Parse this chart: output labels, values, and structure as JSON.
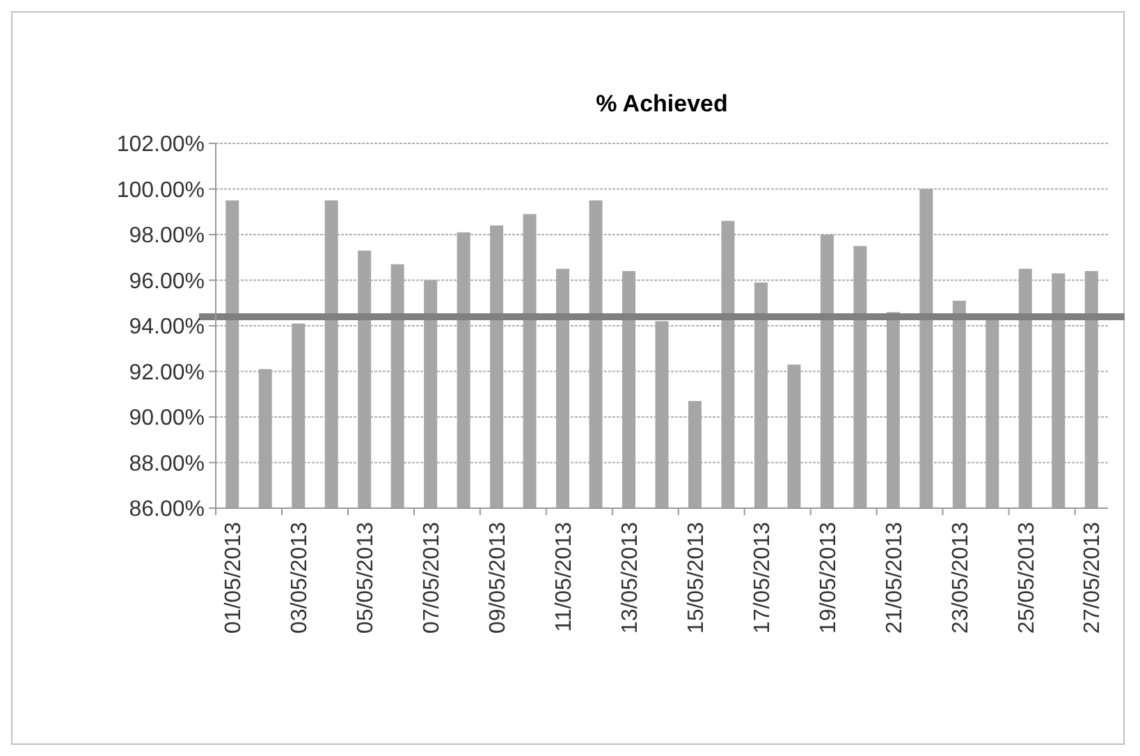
{
  "chart_data": {
    "type": "bar",
    "title": "% Achieved",
    "categories": [
      "01/05/2013",
      null,
      "03/05/2013",
      null,
      "05/05/2013",
      null,
      "07/05/2013",
      null,
      "09/05/2013",
      null,
      "11/05/2013",
      null,
      "13/05/2013",
      null,
      "15/05/2013",
      null,
      "17/05/2013",
      null,
      "19/05/2013",
      null,
      "21/05/2013",
      null,
      "23/05/2013",
      null,
      "25/05/2013",
      null,
      "27/05/2013"
    ],
    "values": [
      99.5,
      92.1,
      94.1,
      99.5,
      97.3,
      96.7,
      96.0,
      98.1,
      98.4,
      98.9,
      96.5,
      99.5,
      96.4,
      94.2,
      90.7,
      98.6,
      95.9,
      92.3,
      98.0,
      97.5,
      94.6,
      100.0,
      95.1,
      94.3,
      96.5,
      96.3,
      96.4
    ],
    "color": "#a6a6a6",
    "ylim": [
      86,
      102
    ],
    "yticks": [
      {
        "value": 86,
        "label": "86.00%"
      },
      {
        "value": 88,
        "label": "88.00%"
      },
      {
        "value": 90,
        "label": "90.00%"
      },
      {
        "value": 92,
        "label": "92.00%"
      },
      {
        "value": 94,
        "label": "94.00%"
      },
      {
        "value": 96,
        "label": "96.00%"
      },
      {
        "value": 98,
        "label": "98.00%"
      },
      {
        "value": 100,
        "label": "100.00%"
      },
      {
        "value": 102,
        "label": "102.00%"
      }
    ],
    "grid": "y",
    "ref_lines": [
      {
        "axis": "y",
        "value": 94.4,
        "color": "#808080"
      }
    ]
  }
}
